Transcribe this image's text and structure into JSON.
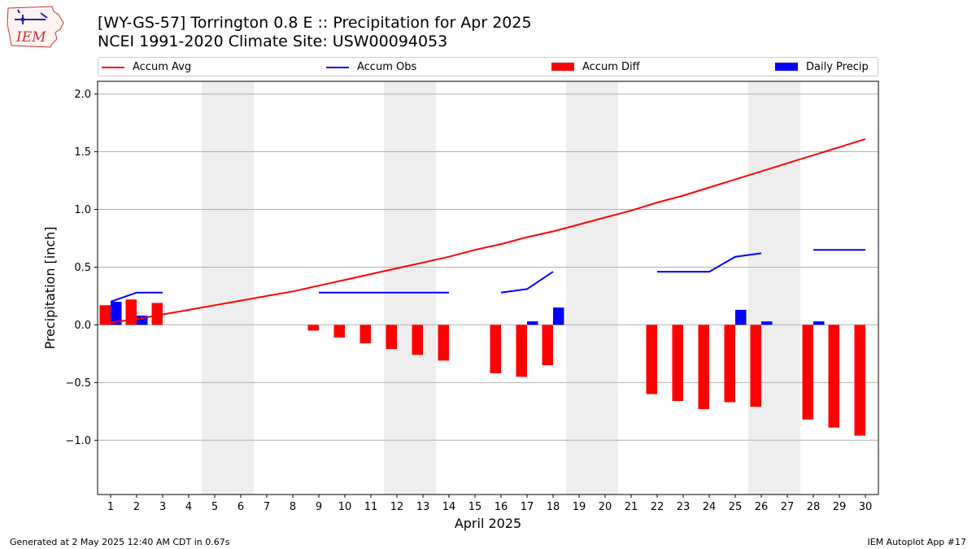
{
  "header": {
    "title_line1": "[WY-GS-57] Torrington 0.8 E :: Precipitation for Apr 2025",
    "title_line2": "NCEI 1991-2020 Climate Site: USW00094053",
    "logo_text": "IEM"
  },
  "legend": {
    "items": [
      {
        "label": "Accum Avg",
        "kind": "line",
        "color": "#ff0000"
      },
      {
        "label": "Accum Obs",
        "kind": "line",
        "color": "#0000ff"
      },
      {
        "label": "Accum Diff",
        "kind": "patch",
        "color": "#ff0000"
      },
      {
        "label": "Daily Precip",
        "kind": "patch",
        "color": "#0000ff"
      }
    ]
  },
  "footer": {
    "left": "Generated at 2 May 2025 12:40 AM CDT in 0.67s",
    "right": "IEM Autoplot App #17"
  },
  "chart_data": {
    "type": "bar",
    "title": "[WY-GS-57] Torrington 0.8 E :: Precipitation for Apr 2025",
    "subtitle": "NCEI 1991-2020 Climate Site: USW00094053",
    "xlabel": "April 2025",
    "ylabel": "Precipitation [inch]",
    "categories": [
      "1",
      "2",
      "3",
      "4",
      "5",
      "6",
      "7",
      "8",
      "9",
      "10",
      "11",
      "12",
      "13",
      "14",
      "15",
      "16",
      "17",
      "18",
      "19",
      "20",
      "21",
      "22",
      "23",
      "24",
      "25",
      "26",
      "27",
      "28",
      "29",
      "30"
    ],
    "ylim": [
      -1.47,
      2.11
    ],
    "yticks": [
      -1.0,
      -0.5,
      0.0,
      0.5,
      1.0,
      1.5,
      2.0
    ],
    "ytick_labels": [
      "−1.0",
      "−0.5",
      "0.0",
      "0.5",
      "1.0",
      "1.5",
      "2.0"
    ],
    "grid": "y",
    "legend_position": "top",
    "weekend_shading_days": [
      5,
      6,
      12,
      13,
      19,
      20,
      26,
      27
    ],
    "shading_color": "#eeeeee",
    "series": [
      {
        "name": "Accum Avg",
        "kind": "line",
        "color": "#ff0000",
        "values": [
          0.02,
          0.05,
          0.09,
          0.13,
          0.17,
          0.21,
          0.25,
          0.29,
          0.34,
          0.39,
          0.44,
          0.49,
          0.54,
          0.59,
          0.65,
          0.7,
          0.76,
          0.81,
          0.87,
          0.93,
          0.99,
          1.06,
          1.12,
          1.19,
          1.26,
          1.33,
          1.4,
          1.47,
          1.54,
          1.61
        ]
      },
      {
        "name": "Accum Obs",
        "kind": "line",
        "color": "#0000ff",
        "values": [
          0.2,
          0.28,
          0.28,
          null,
          null,
          null,
          null,
          null,
          0.28,
          0.28,
          0.28,
          0.28,
          0.28,
          0.28,
          null,
          0.28,
          0.31,
          0.46,
          null,
          null,
          null,
          0.46,
          0.46,
          0.46,
          0.59,
          0.62,
          null,
          0.65,
          0.65,
          0.65
        ]
      },
      {
        "name": "Accum Diff",
        "kind": "bar",
        "color": "#ff0000",
        "values": [
          0.17,
          0.22,
          0.19,
          null,
          null,
          null,
          null,
          null,
          -0.05,
          -0.11,
          -0.16,
          -0.21,
          -0.26,
          -0.31,
          null,
          -0.42,
          -0.45,
          -0.35,
          null,
          null,
          null,
          -0.6,
          -0.66,
          -0.73,
          -0.67,
          -0.71,
          null,
          -0.82,
          -0.89,
          -0.96
        ]
      },
      {
        "name": "Daily Precip",
        "kind": "bar",
        "color": "#0000ff",
        "values": [
          0.2,
          0.08,
          0.0,
          null,
          null,
          null,
          null,
          null,
          0.0,
          0.0,
          0.0,
          0.0,
          0.0,
          0.0,
          null,
          0.0,
          0.03,
          0.15,
          null,
          null,
          null,
          0.0,
          0.0,
          0.0,
          0.13,
          0.03,
          null,
          0.03,
          0.0,
          0.0
        ]
      }
    ]
  }
}
